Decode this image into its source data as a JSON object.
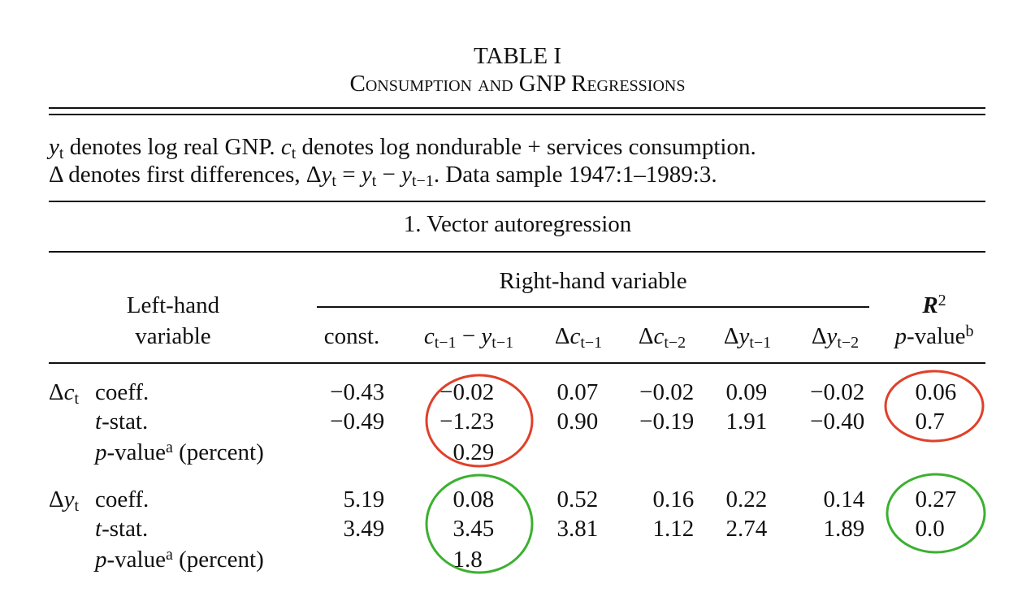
{
  "title": "TABLE I",
  "subtitle": "Consumption and GNP Regressions",
  "note": [
    [
      {
        "text": "y",
        "style": "italic"
      },
      {
        "text": "t",
        "style": "sub"
      },
      {
        "text": " denotes log real GNP. "
      },
      {
        "text": "c",
        "style": "italic"
      },
      {
        "text": "t",
        "style": "sub"
      },
      {
        "text": " denotes log nondurable + services consumption."
      }
    ],
    [
      {
        "text": "Δ denotes first differences, Δ"
      },
      {
        "text": "y",
        "style": "italic"
      },
      {
        "text": "t",
        "style": "sub"
      },
      {
        "text": " = "
      },
      {
        "text": "y",
        "style": "italic"
      },
      {
        "text": "t",
        "style": "sub"
      },
      {
        "text": " − "
      },
      {
        "text": "y",
        "style": "italic"
      },
      {
        "text": "t−1",
        "style": "sub"
      },
      {
        "text": ". Data sample 1947:1–1989:3."
      }
    ]
  ],
  "section": "1. Vector autoregression",
  "header": {
    "spanner": "Right-hand variable",
    "stub": [
      "Left-hand",
      "variable"
    ],
    "columns": [
      [
        {
          "text": "const."
        }
      ],
      [
        {
          "text": "c",
          "style": "italic"
        },
        {
          "text": "t−1",
          "style": "sub"
        },
        {
          "text": " − "
        },
        {
          "text": "y",
          "style": "italic"
        },
        {
          "text": "t−1",
          "style": "sub"
        }
      ],
      [
        {
          "text": "Δ"
        },
        {
          "text": "c",
          "style": "italic"
        },
        {
          "text": "t−1",
          "style": "sub"
        }
      ],
      [
        {
          "text": "Δ"
        },
        {
          "text": "c",
          "style": "italic"
        },
        {
          "text": "t−2",
          "style": "sub"
        }
      ],
      [
        {
          "text": "Δ"
        },
        {
          "text": "y",
          "style": "italic"
        },
        {
          "text": "t−1",
          "style": "sub"
        }
      ],
      [
        {
          "text": "Δ"
        },
        {
          "text": "y",
          "style": "italic"
        },
        {
          "text": "t−2",
          "style": "sub"
        }
      ]
    ],
    "last": [
      [
        {
          "text": "R",
          "style": "bolditalic"
        },
        {
          "text": "2",
          "style": "sup"
        }
      ],
      [
        {
          "text": "p",
          "style": "italic"
        },
        {
          "text": "-value"
        },
        {
          "text": "b",
          "style": "sup"
        }
      ]
    ]
  },
  "rows": [
    {
      "var": [
        {
          "text": "Δ"
        },
        {
          "text": "c",
          "style": "italic"
        },
        {
          "text": "t",
          "style": "sub"
        }
      ],
      "stats": [
        {
          "label": [
            {
              "text": "coeff."
            }
          ],
          "values": [
            "−0.43",
            "−0.02",
            "0.07",
            "−0.02",
            "0.09",
            "−0.02",
            "0.06"
          ]
        },
        {
          "label": [
            {
              "text": "t",
              "style": "italic"
            },
            {
              "text": "-stat."
            }
          ],
          "values": [
            "−0.49",
            "−1.23",
            "0.90",
            "−0.19",
            "1.91",
            "−0.40",
            "0.7"
          ]
        },
        {
          "label": [
            {
              "text": "p",
              "style": "italic"
            },
            {
              "text": "-value"
            },
            {
              "text": "a",
              "style": "sup"
            },
            {
              "text": " (percent)"
            }
          ],
          "values": [
            null,
            "0.29",
            null,
            null,
            null,
            null,
            null
          ]
        }
      ]
    },
    {
      "var": [
        {
          "text": "Δ"
        },
        {
          "text": "y",
          "style": "italic"
        },
        {
          "text": "t",
          "style": "sub"
        }
      ],
      "stats": [
        {
          "label": [
            {
              "text": "coeff."
            }
          ],
          "values": [
            "5.19",
            "0.08",
            "0.52",
            "0.16",
            "0.22",
            "0.14",
            "0.27"
          ]
        },
        {
          "label": [
            {
              "text": "t",
              "style": "italic"
            },
            {
              "text": "-stat."
            }
          ],
          "values": [
            "3.49",
            "3.45",
            "3.81",
            "1.12",
            "2.74",
            "1.89",
            "0.0"
          ]
        },
        {
          "label": [
            {
              "text": "p",
              "style": "italic"
            },
            {
              "text": "-value"
            },
            {
              "text": "a",
              "style": "sup"
            },
            {
              "text": " (percent)"
            }
          ],
          "values": [
            null,
            "1.8",
            null,
            null,
            null,
            null,
            null
          ]
        }
      ]
    }
  ]
}
